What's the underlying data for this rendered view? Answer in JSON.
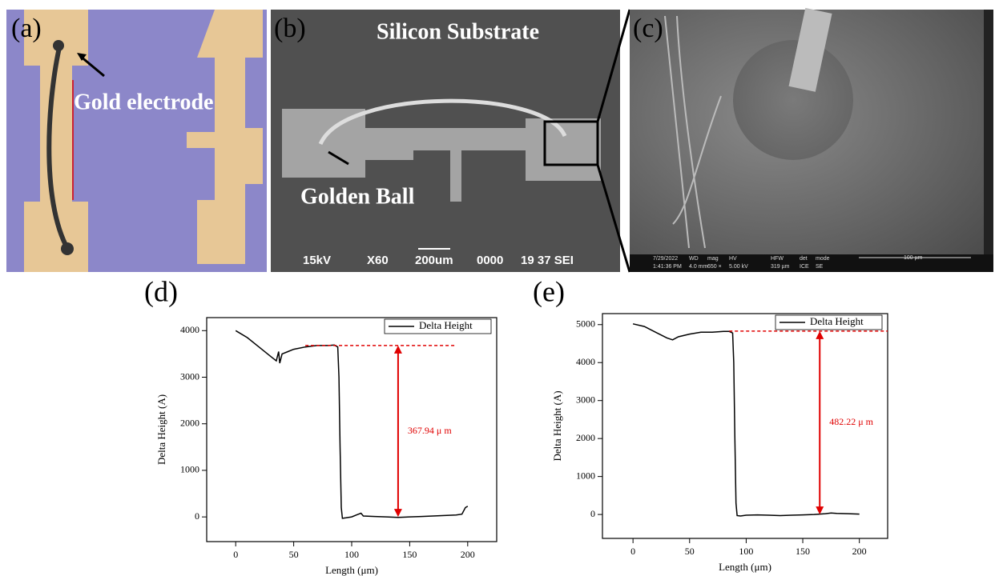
{
  "panels": [
    {
      "label": "(a)",
      "annotation": "Gold electrode"
    },
    {
      "label": "(b)",
      "title": "Silicon Substrate",
      "annotation": "Golden Ball",
      "info": [
        "15kV",
        "X60",
        "200um",
        "0000",
        "19 37 SEI"
      ]
    },
    {
      "label": "(c)",
      "info": [
        "7/29/2022",
        "1:41:36 PM",
        "WD",
        "4.0 mm",
        "mag",
        "650 ×",
        "HV",
        "5.00 kV",
        "HFW",
        "319 µm",
        "det",
        "ICE",
        "mode",
        "SE",
        "100 µm"
      ]
    }
  ],
  "chart_data": [
    {
      "type": "line",
      "title": "(d)",
      "x_label": "Length (μm)",
      "y_label": "Delta Height (A)",
      "x": [
        0,
        10,
        20,
        30,
        35,
        37,
        38,
        40,
        45,
        50,
        60,
        70,
        80,
        85,
        88,
        89,
        90,
        91,
        92,
        95,
        100,
        105,
        108,
        110,
        120,
        130,
        140,
        150,
        160,
        170,
        180,
        190,
        195,
        198,
        200
      ],
      "series": [
        {
          "name": "Delta Height",
          "color": "#000000",
          "values": [
            4000,
            3850,
            3650,
            3450,
            3350,
            3550,
            3300,
            3500,
            3550,
            3600,
            3650,
            3680,
            3680,
            3690,
            3650,
            3000,
            1500,
            200,
            -30,
            -20,
            0,
            50,
            80,
            20,
            10,
            0,
            -10,
            0,
            10,
            20,
            30,
            40,
            60,
            200,
            230
          ]
        }
      ],
      "xlim": [
        -25,
        225
      ],
      "xticks": [
        0,
        50,
        100,
        150,
        200
      ],
      "ylim": [
        -530,
        4280
      ],
      "yticks": [
        0,
        1000,
        2000,
        3000,
        4000
      ],
      "legend": "top-right",
      "reference_line": {
        "y": 3680,
        "x0": 60,
        "x1": 190,
        "color": "#e00000"
      },
      "annotations": [
        {
          "text": "367.94 μ m",
          "x": 140,
          "y_from": 0,
          "y_to": 3680,
          "color": "#e00000"
        }
      ]
    },
    {
      "type": "line",
      "title": "(e)",
      "x_label": "Length (μm)",
      "y_label": "Delta Height (A)",
      "x": [
        0,
        10,
        20,
        30,
        35,
        40,
        50,
        60,
        70,
        80,
        85,
        88,
        89,
        90,
        91,
        92,
        95,
        100,
        110,
        120,
        130,
        140,
        150,
        160,
        170,
        175,
        180,
        190,
        200
      ],
      "series": [
        {
          "name": "Delta Height",
          "color": "#000000",
          "values": [
            5020,
            4950,
            4800,
            4650,
            4600,
            4680,
            4750,
            4800,
            4800,
            4820,
            4820,
            4780,
            4000,
            2000,
            300,
            -30,
            -40,
            -20,
            -10,
            -20,
            -30,
            -20,
            -10,
            0,
            20,
            40,
            30,
            20,
            10
          ]
        }
      ],
      "xlim": [
        -27,
        225
      ],
      "xticks": [
        0,
        50,
        100,
        150,
        200
      ],
      "ylim": [
        -630,
        5290
      ],
      "yticks": [
        0,
        1000,
        2000,
        3000,
        4000,
        5000
      ],
      "legend": "top-right",
      "reference_line": {
        "y": 4830,
        "x0": 85,
        "x1": 225,
        "color": "#e00000"
      },
      "annotations": [
        {
          "text": "482.22 μ m",
          "x": 165,
          "y_from": 0,
          "y_to": 4830,
          "color": "#e00000"
        }
      ]
    }
  ]
}
